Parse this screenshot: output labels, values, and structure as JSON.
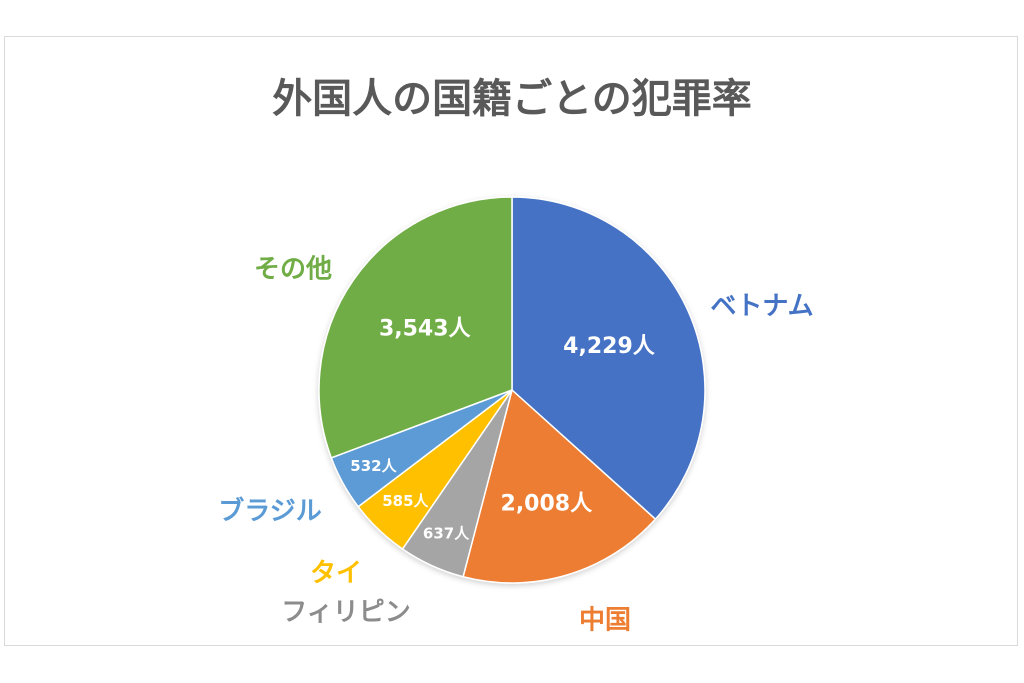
{
  "chart_data": {
    "type": "pie",
    "title": "外国人の国籍ごとの犯罪率",
    "slices": [
      {
        "name": "ベトナム",
        "value": 4229,
        "value_label": "4,229人",
        "color": "#4472c4"
      },
      {
        "name": "中国",
        "value": 2008,
        "value_label": "2,008人",
        "color": "#ed7d31"
      },
      {
        "name": "フィリピン",
        "value": 637,
        "value_label": "637人",
        "color": "#a5a5a5"
      },
      {
        "name": "タイ",
        "value": 585,
        "value_label": "585人",
        "color": "#ffc000"
      },
      {
        "name": "ブラジル",
        "value": 532,
        "value_label": "532人",
        "color": "#5b9bd5"
      },
      {
        "name": "その他",
        "value": 3543,
        "value_label": "3,543人",
        "color": "#70ad47"
      }
    ],
    "start_angle": "12 o'clock",
    "direction": "clockwise",
    "legend": "none (category labels outside slices)"
  }
}
